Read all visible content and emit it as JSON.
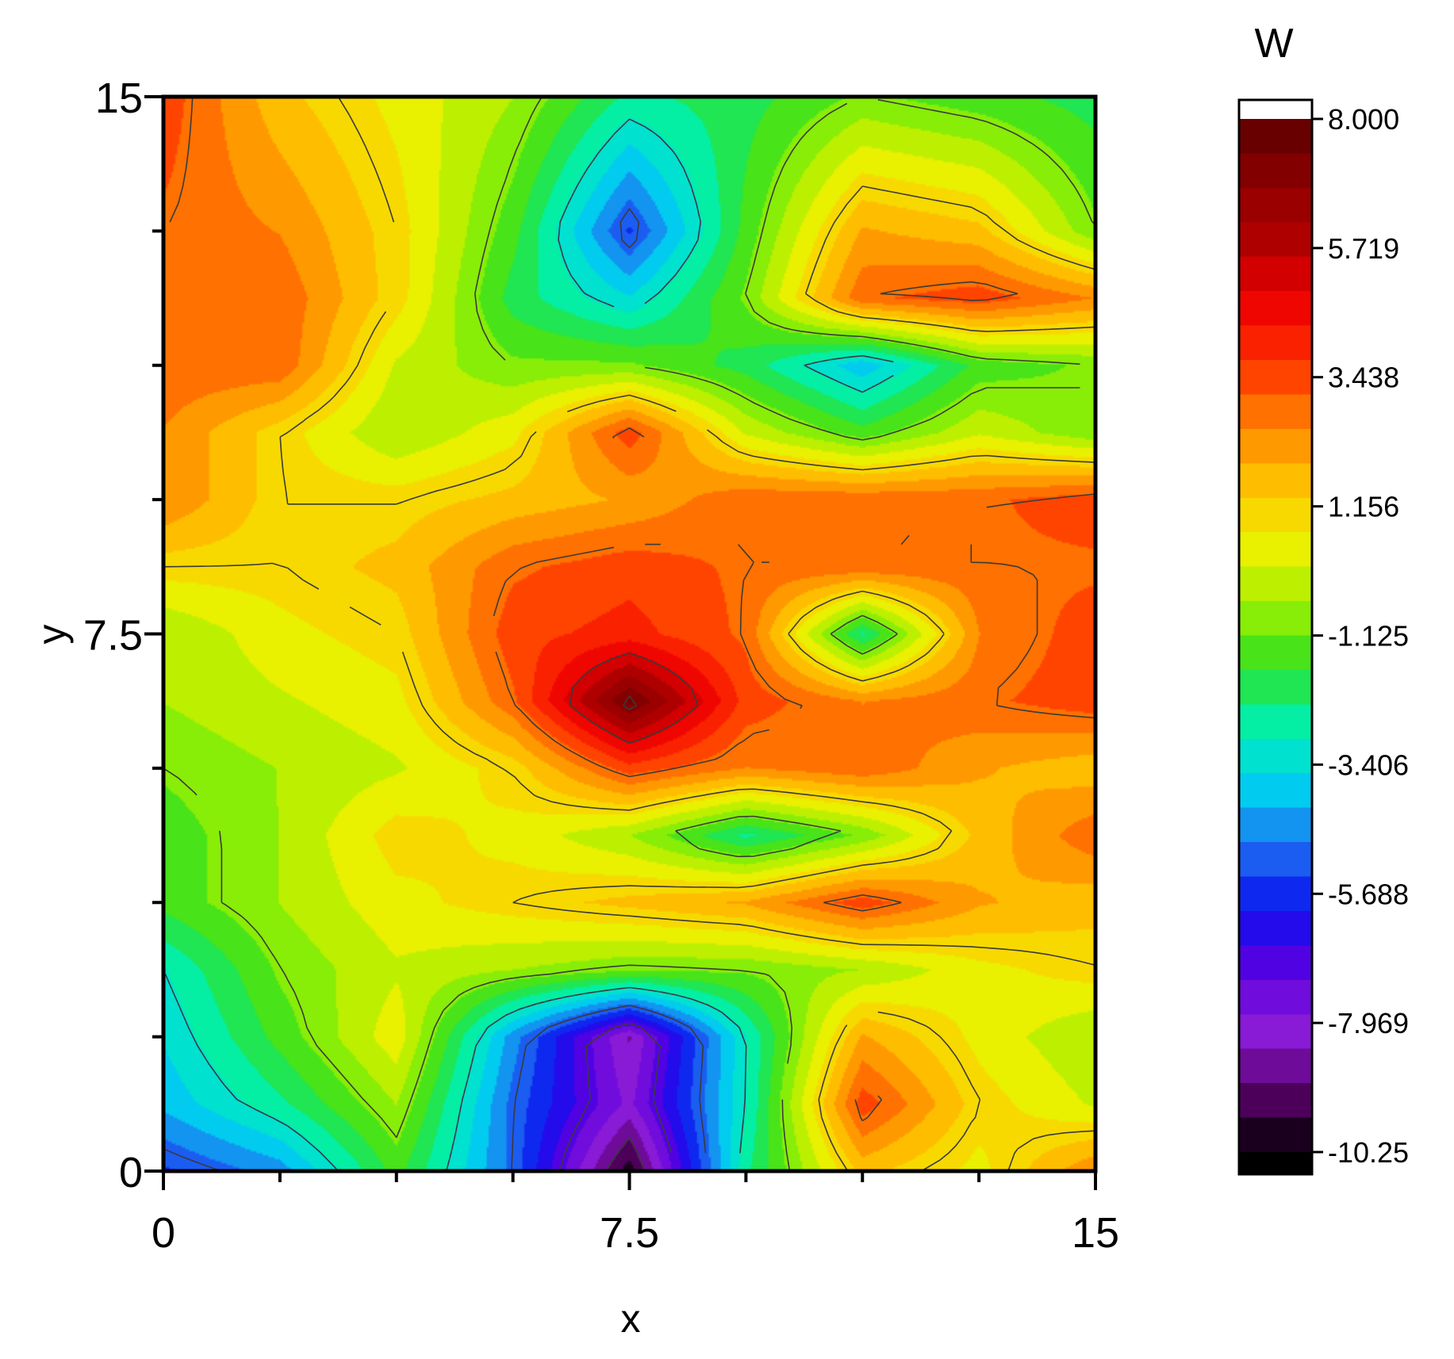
{
  "chart_data": {
    "type": "heatmap",
    "subtype": "filled-contour",
    "xlabel": "x",
    "ylabel": "y",
    "xlim": [
      0,
      15
    ],
    "ylim": [
      0,
      15
    ],
    "x_ticks": [
      {
        "value": 0,
        "label": "0"
      },
      {
        "value": 7.5,
        "label": "7.5"
      },
      {
        "value": 15,
        "label": "15"
      }
    ],
    "y_ticks": [
      {
        "value": 0,
        "label": "0"
      },
      {
        "value": 7.5,
        "label": "7.5"
      },
      {
        "value": 15,
        "label": "15"
      }
    ],
    "minor_tick_step": 1.875,
    "colorbar": {
      "title": "W",
      "range": [
        -10.25,
        8.0
      ],
      "ticks": [
        {
          "value": 8.0,
          "label": "8.000"
        },
        {
          "value": 5.719,
          "label": "5.719"
        },
        {
          "value": 3.438,
          "label": "3.438"
        },
        {
          "value": 1.156,
          "label": "1.156"
        },
        {
          "value": -1.125,
          "label": "-1.125"
        },
        {
          "value": -3.406,
          "label": "-3.406"
        },
        {
          "value": -5.688,
          "label": "-5.688"
        },
        {
          "value": -7.969,
          "label": "-7.969"
        },
        {
          "value": -10.25,
          "label": "-10.25"
        }
      ],
      "colormap": [
        "#000000",
        "#5a006a",
        "#8a1ad8",
        "#5a00e0",
        "#0a10f0",
        "#1e6ef0",
        "#00d0f0",
        "#00f0b0",
        "#30e020",
        "#a0f000",
        "#f0f000",
        "#ffc000",
        "#ff8000",
        "#ff3000",
        "#ee0000",
        "#b00000",
        "#8a0000",
        "#5a0000"
      ]
    },
    "grid": false,
    "grid_x": [
      0,
      1.875,
      3.75,
      5.625,
      7.5,
      9.375,
      11.25,
      13.125,
      15
    ],
    "grid_y": [
      0,
      1.875,
      3.75,
      5.625,
      7.5,
      9.375,
      11.25,
      13.125,
      15
    ],
    "z": [
      [
        -5.5,
        -4.5,
        -1.5,
        -5.0,
        -10.0,
        -2.5,
        1.5,
        0.5,
        2.5
      ],
      [
        -4.0,
        -2.5,
        -0.5,
        -5.0,
        -8.0,
        -3.0,
        3.5,
        1.0,
        0.0
      ],
      [
        -3.5,
        -1.5,
        0.5,
        -4.5,
        -8.5,
        -3.0,
        2.0,
        0.5,
        -0.5
      ],
      [
        -3.0,
        -1.0,
        0.0,
        -0.5,
        -1.0,
        -1.0,
        -0.5,
        0.5,
        1.0
      ],
      [
        -1.5,
        -0.5,
        0.5,
        1.0,
        1.5,
        2.0,
        3.5,
        2.0,
        1.5
      ],
      [
        -1.5,
        -0.5,
        1.0,
        0.5,
        -0.5,
        -2.5,
        -1.0,
        1.5,
        3.0
      ],
      [
        -1.0,
        -0.5,
        0.0,
        1.0,
        3.5,
        2.5,
        3.0,
        2.0,
        1.5
      ],
      [
        -0.5,
        0.0,
        0.5,
        3.0,
        7.5,
        3.5,
        2.5,
        3.0,
        3.5
      ],
      [
        -0.5,
        0.5,
        1.0,
        3.5,
        4.0,
        3.0,
        -2.5,
        2.5,
        3.5
      ],
      [
        1.0,
        1.0,
        1.5,
        3.0,
        3.5,
        3.0,
        3.0,
        3.0,
        3.0
      ],
      [
        2.5,
        1.0,
        1.0,
        1.5,
        2.0,
        3.0,
        3.0,
        3.0,
        3.5
      ],
      [
        2.5,
        1.0,
        -0.5,
        0.5,
        3.5,
        0.0,
        -1.5,
        0.0,
        -1.0
      ],
      [
        3.0,
        3.0,
        0.0,
        -1.0,
        -1.0,
        -2.0,
        -4.0,
        -1.5,
        -1.0
      ],
      [
        3.0,
        3.0,
        1.0,
        -2.0,
        -3.5,
        -1.0,
        3.0,
        3.5,
        2.5
      ],
      [
        3.0,
        2.5,
        1.0,
        -1.5,
        -5.5,
        -1.5,
        2.0,
        1.5,
        -1.0
      ],
      [
        3.5,
        1.5,
        0.5,
        -0.5,
        -2.5,
        -2.0,
        -1.0,
        -1.5,
        -2.0
      ]
    ],
    "z_grid_y": [
      0,
      0.9375,
      1.875,
      2.8125,
      3.75,
      4.6875,
      5.625,
      6.5625,
      7.5,
      8.4375,
      9.375,
      10.3125,
      11.25,
      12.1875,
      13.125,
      15
    ],
    "contour_levels": [
      -9,
      -7,
      -5,
      -3,
      -1,
      1,
      3,
      5,
      7
    ]
  }
}
